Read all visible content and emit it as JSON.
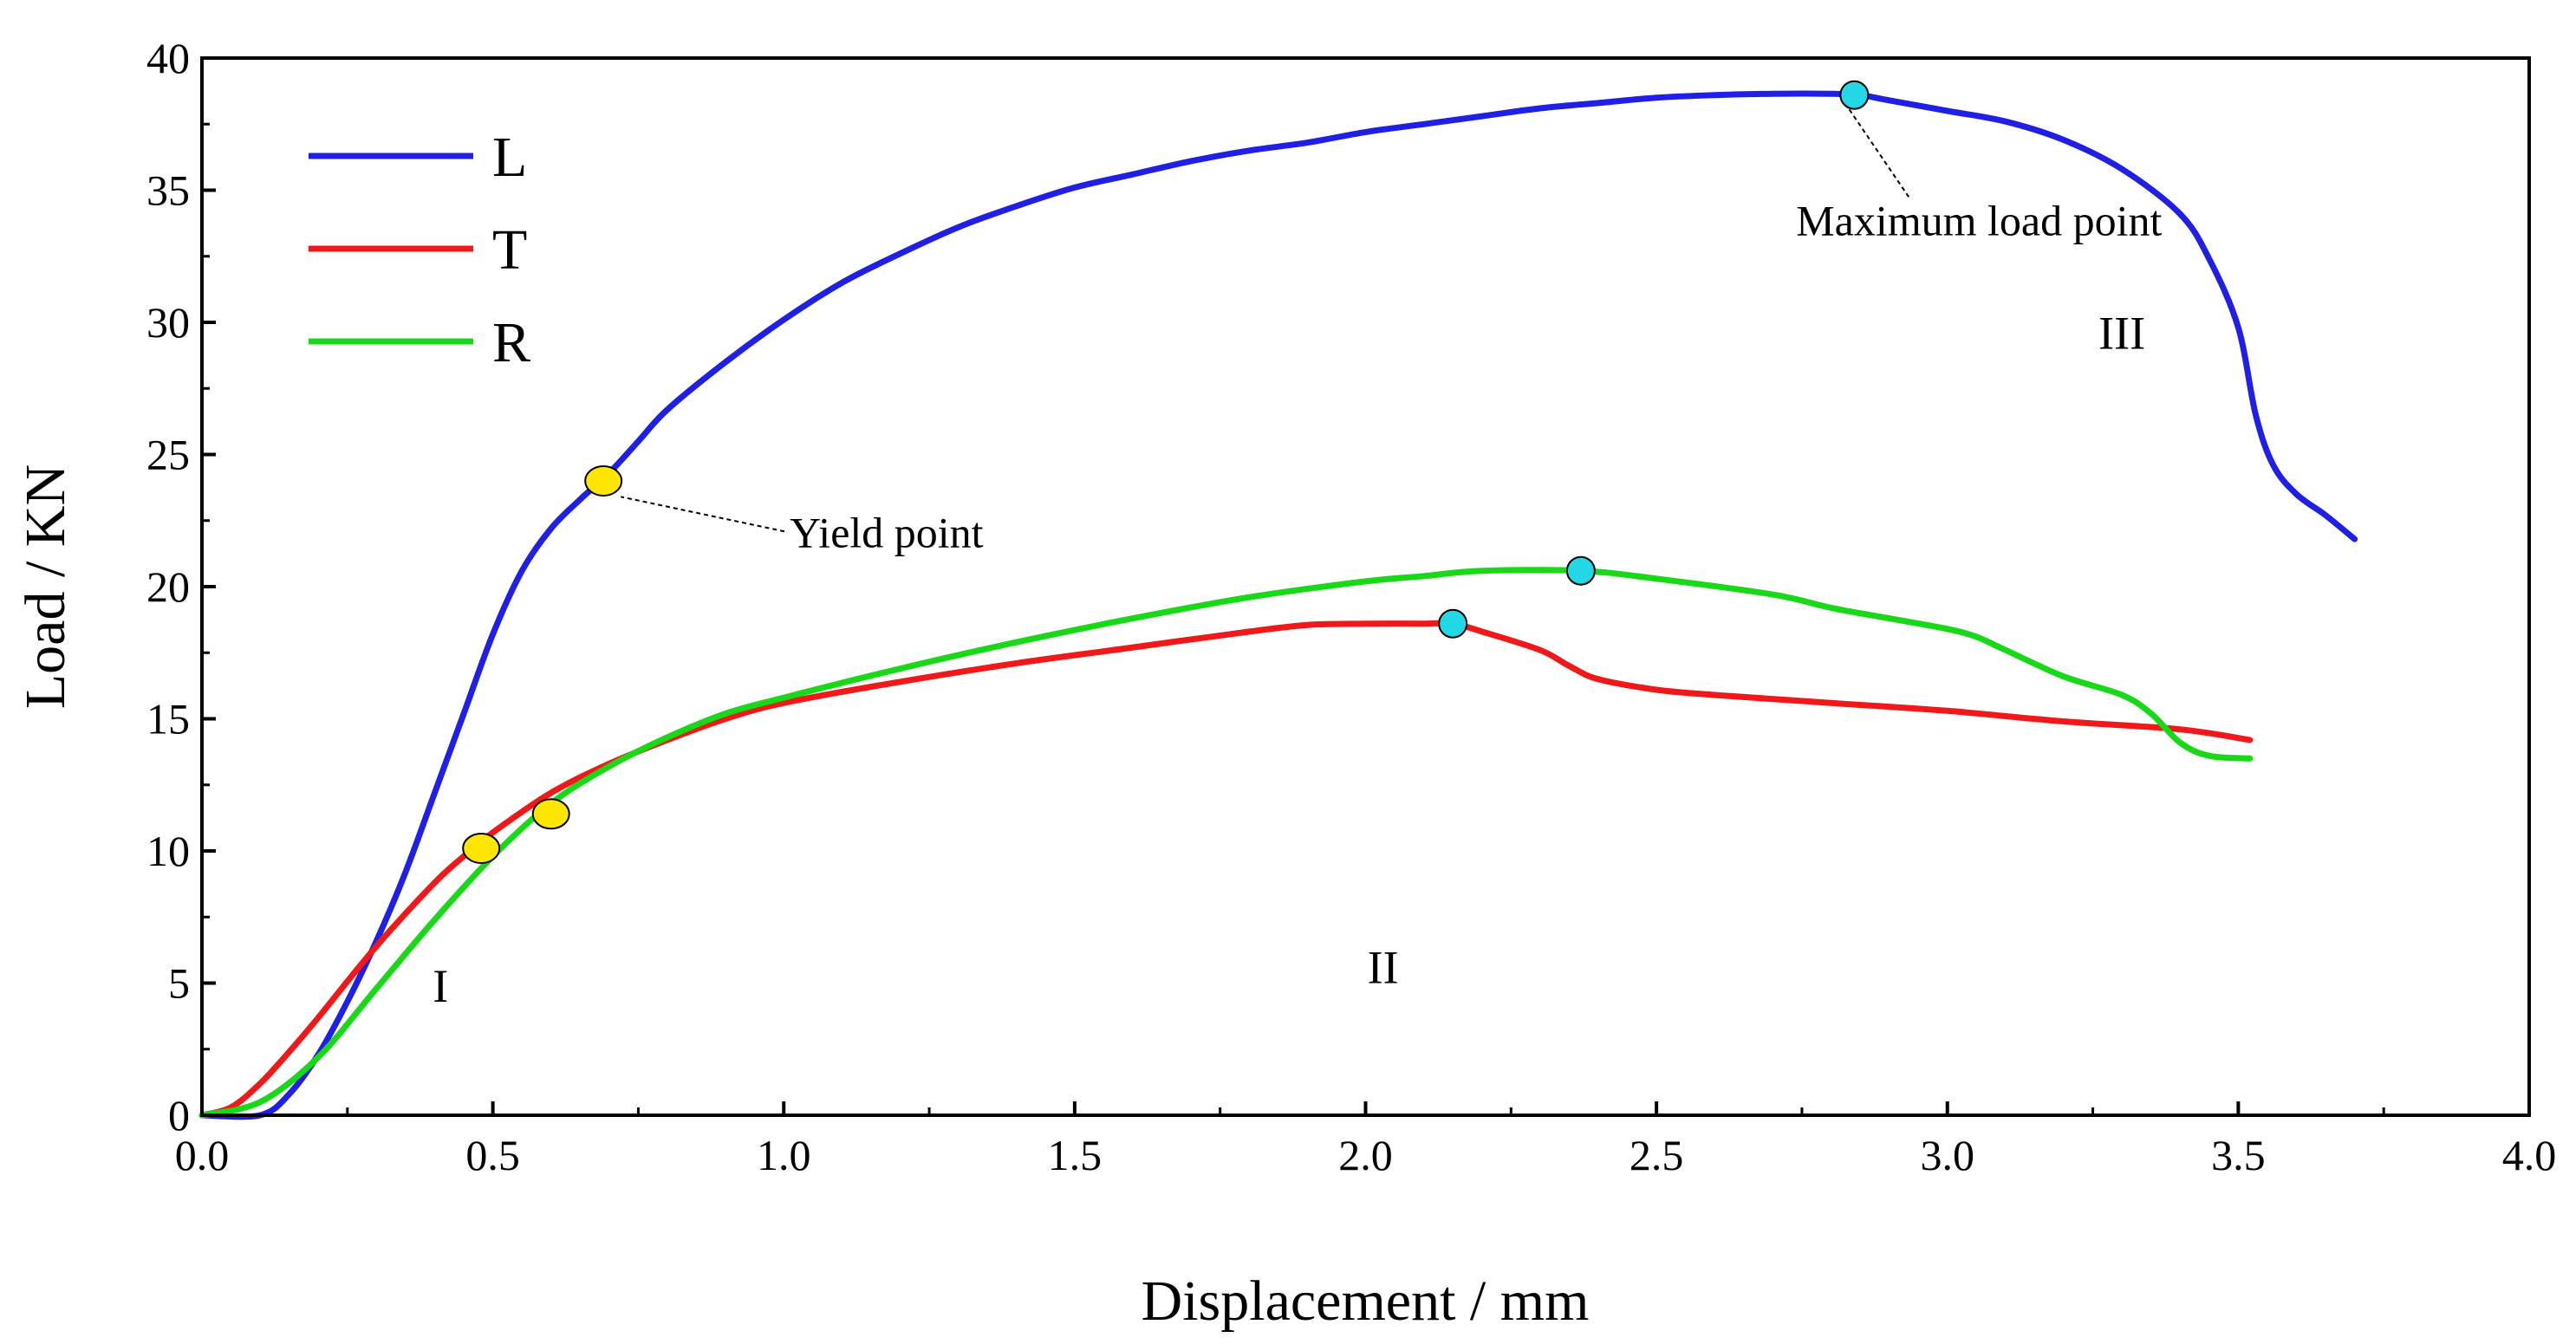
{
  "chart_data": {
    "type": "line",
    "title": "",
    "xlabel": "Displacement / mm",
    "ylabel": "Load / KN",
    "xlim": [
      0,
      4
    ],
    "ylim": [
      0,
      40
    ],
    "xticks": [
      0.0,
      0.5,
      1.0,
      1.5,
      2.0,
      2.5,
      3.0,
      3.5,
      4.0
    ],
    "xtick_labels": [
      "0.0",
      "0.5",
      "1.0",
      "1.5",
      "2.0",
      "2.5",
      "3.0",
      "3.5",
      "4.0"
    ],
    "yticks": [
      0,
      5,
      10,
      15,
      20,
      25,
      30,
      35,
      40
    ],
    "ytick_labels": [
      "0",
      "5",
      "10",
      "15",
      "20",
      "25",
      "30",
      "35",
      "40"
    ],
    "grid": false,
    "legend_position": "top-left",
    "series": [
      {
        "name": "L",
        "color": "#1f1fe6",
        "points": [
          [
            0.0,
            0.0
          ],
          [
            0.1,
            0.0
          ],
          [
            0.15,
            0.8
          ],
          [
            0.2,
            2.3
          ],
          [
            0.25,
            4.3
          ],
          [
            0.3,
            6.6
          ],
          [
            0.35,
            9.2
          ],
          [
            0.4,
            12.2
          ],
          [
            0.45,
            15.2
          ],
          [
            0.5,
            18.2
          ],
          [
            0.55,
            20.6
          ],
          [
            0.6,
            22.2
          ],
          [
            0.65,
            23.3
          ],
          [
            0.7,
            24.3
          ],
          [
            0.75,
            25.5
          ],
          [
            0.8,
            26.7
          ],
          [
            0.9,
            28.5
          ],
          [
            1.0,
            30.1
          ],
          [
            1.1,
            31.5
          ],
          [
            1.2,
            32.6
          ],
          [
            1.3,
            33.6
          ],
          [
            1.4,
            34.4
          ],
          [
            1.5,
            35.1
          ],
          [
            1.6,
            35.6
          ],
          [
            1.7,
            36.1
          ],
          [
            1.8,
            36.5
          ],
          [
            1.9,
            36.8
          ],
          [
            2.0,
            37.2
          ],
          [
            2.1,
            37.5
          ],
          [
            2.2,
            37.8
          ],
          [
            2.3,
            38.1
          ],
          [
            2.4,
            38.3
          ],
          [
            2.5,
            38.5
          ],
          [
            2.6,
            38.6
          ],
          [
            2.7,
            38.65
          ],
          [
            2.8,
            38.65
          ],
          [
            2.85,
            38.6
          ],
          [
            2.9,
            38.4
          ],
          [
            3.0,
            38.0
          ],
          [
            3.1,
            37.6
          ],
          [
            3.2,
            36.9
          ],
          [
            3.3,
            35.8
          ],
          [
            3.4,
            34.1
          ],
          [
            3.45,
            32.4
          ],
          [
            3.5,
            29.8
          ],
          [
            3.53,
            26.5
          ],
          [
            3.56,
            24.6
          ],
          [
            3.6,
            23.5
          ],
          [
            3.65,
            22.7
          ],
          [
            3.7,
            21.8
          ]
        ]
      },
      {
        "name": "T",
        "color": "#f01818",
        "points": [
          [
            0.0,
            0.0
          ],
          [
            0.05,
            0.3
          ],
          [
            0.1,
            1.2
          ],
          [
            0.15,
            2.4
          ],
          [
            0.2,
            3.7
          ],
          [
            0.3,
            6.4
          ],
          [
            0.4,
            8.8
          ],
          [
            0.45,
            9.8
          ],
          [
            0.5,
            10.7
          ],
          [
            0.6,
            12.2
          ],
          [
            0.7,
            13.3
          ],
          [
            0.8,
            14.2
          ],
          [
            0.9,
            15.0
          ],
          [
            1.0,
            15.6
          ],
          [
            1.2,
            16.4
          ],
          [
            1.4,
            17.1
          ],
          [
            1.6,
            17.7
          ],
          [
            1.8,
            18.3
          ],
          [
            1.9,
            18.55
          ],
          [
            2.0,
            18.6
          ],
          [
            2.1,
            18.6
          ],
          [
            2.15,
            18.6
          ],
          [
            2.2,
            18.3
          ],
          [
            2.3,
            17.6
          ],
          [
            2.35,
            17.0
          ],
          [
            2.4,
            16.5
          ],
          [
            2.5,
            16.1
          ],
          [
            2.6,
            15.9
          ],
          [
            2.8,
            15.6
          ],
          [
            3.0,
            15.3
          ],
          [
            3.2,
            14.9
          ],
          [
            3.4,
            14.6
          ],
          [
            3.52,
            14.2
          ]
        ]
      },
      {
        "name": "R",
        "color": "#18d818",
        "points": [
          [
            0.0,
            0.0
          ],
          [
            0.1,
            0.5
          ],
          [
            0.2,
            2.2
          ],
          [
            0.3,
            4.8
          ],
          [
            0.4,
            7.4
          ],
          [
            0.5,
            9.8
          ],
          [
            0.6,
            11.8
          ],
          [
            0.7,
            13.2
          ],
          [
            0.8,
            14.3
          ],
          [
            0.9,
            15.2
          ],
          [
            1.0,
            15.8
          ],
          [
            1.2,
            16.9
          ],
          [
            1.4,
            17.9
          ],
          [
            1.6,
            18.8
          ],
          [
            1.8,
            19.6
          ],
          [
            2.0,
            20.2
          ],
          [
            2.1,
            20.4
          ],
          [
            2.2,
            20.6
          ],
          [
            2.37,
            20.6
          ],
          [
            2.5,
            20.3
          ],
          [
            2.7,
            19.7
          ],
          [
            2.8,
            19.2
          ],
          [
            2.9,
            18.8
          ],
          [
            3.0,
            18.4
          ],
          [
            3.05,
            18.1
          ],
          [
            3.1,
            17.6
          ],
          [
            3.2,
            16.6
          ],
          [
            3.3,
            15.9
          ],
          [
            3.35,
            15.2
          ],
          [
            3.4,
            14.1
          ],
          [
            3.45,
            13.6
          ],
          [
            3.52,
            13.5
          ]
        ]
      }
    ],
    "markers": [
      {
        "series": "L",
        "kind": "yield",
        "x": 0.69,
        "y": 24.0,
        "color": "#ffe600"
      },
      {
        "series": "T",
        "kind": "yield",
        "x": 0.48,
        "y": 10.1,
        "color": "#ffe600"
      },
      {
        "series": "R",
        "kind": "yield",
        "x": 0.6,
        "y": 11.4,
        "color": "#ffe600"
      },
      {
        "series": "L",
        "kind": "maximum",
        "x": 2.84,
        "y": 38.6,
        "color": "#22d8e6"
      },
      {
        "series": "T",
        "kind": "maximum",
        "x": 2.15,
        "y": 18.6,
        "color": "#22d8e6"
      },
      {
        "series": "R",
        "kind": "maximum",
        "x": 2.37,
        "y": 20.6,
        "color": "#22d8e6"
      }
    ],
    "annotations": [
      {
        "text": "Yield point",
        "x": 1.01,
        "y": 21.5,
        "target": [
          0.72,
          23.4
        ]
      },
      {
        "text": "Maximum load point",
        "x": 2.74,
        "y": 33.3,
        "target": [
          2.83,
          38.1
        ]
      }
    ],
    "regions": [
      {
        "label": "I",
        "x": 0.41,
        "y": 4.3
      },
      {
        "label": "II",
        "x": 2.03,
        "y": 5.0
      },
      {
        "label": "III",
        "x": 3.3,
        "y": 29.0
      }
    ]
  }
}
